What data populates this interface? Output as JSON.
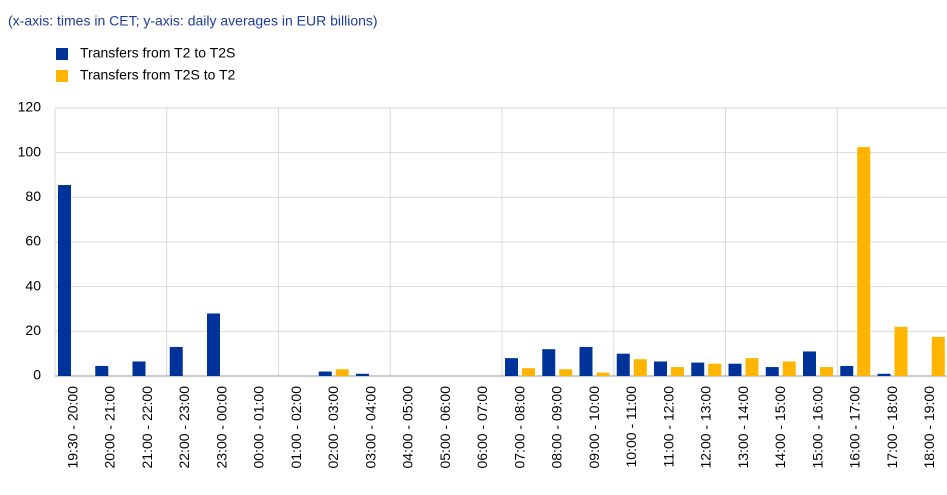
{
  "chart_data": {
    "type": "bar",
    "subtitle": "(x-axis: times in CET; y-axis: daily averages in EUR billions)",
    "categories": [
      "19:30 - 20:00",
      "20:00 - 21:00",
      "21:00 - 22:00",
      "22:00 - 23:00",
      "23:00 - 00:00",
      "00:00 - 01:00",
      "01:00 - 02:00",
      "02:00 - 03:00",
      "03:00 - 04:00",
      "04:00 - 05:00",
      "05:00 - 06:00",
      "06:00 - 07:00",
      "07:00 - 08:00",
      "08:00 - 09:00",
      "09:00 - 10:00",
      "10:00 - 11:00",
      "11:00 - 12:00",
      "12:00 - 13:00",
      "13:00 - 14:00",
      "14:00 - 15:00",
      "15:00 - 16:00",
      "16:00 - 17:00",
      "17:00 - 18:00",
      "18:00 - 19:00"
    ],
    "series": [
      {
        "name": "Transfers from T2 to T2S",
        "color": "#003399",
        "values": [
          85.5,
          4.5,
          6.5,
          13,
          28,
          0,
          0,
          2,
          1,
          0,
          0,
          0,
          8,
          12,
          13,
          10,
          6.5,
          6,
          5.5,
          4,
          11,
          4.5,
          1,
          0
        ]
      },
      {
        "name": "Transfers from T2S to T2",
        "color": "#ffb400",
        "values": [
          0,
          0,
          0,
          0,
          0,
          0,
          0,
          3,
          0,
          0,
          0,
          0,
          3.5,
          3,
          1.5,
          7.5,
          4,
          5.5,
          8,
          6.5,
          4,
          102.5,
          22,
          17.5
        ]
      }
    ],
    "ylim": [
      0,
      120
    ],
    "yticks": [
      0,
      20,
      40,
      60,
      80,
      100,
      120
    ],
    "grid": true
  }
}
